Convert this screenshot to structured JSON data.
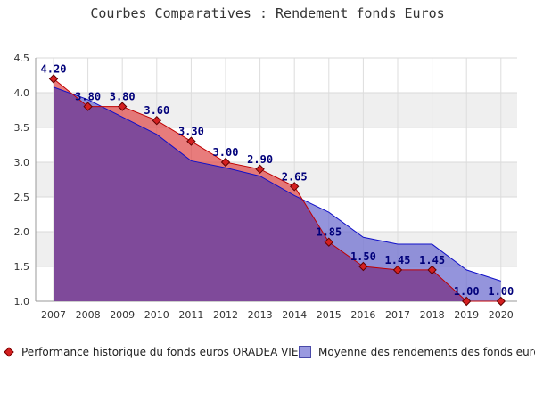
{
  "title": "Courbes Comparatives : Rendement fonds Euros",
  "chart_data": {
    "type": "area",
    "categories": [
      "2007",
      "2008",
      "2009",
      "2010",
      "2011",
      "2012",
      "2013",
      "2014",
      "2015",
      "2016",
      "2017",
      "2018",
      "2019",
      "2020"
    ],
    "series": [
      {
        "name": "Performance historique du fonds euros ORADEA VIE",
        "values": [
          4.2,
          3.8,
          3.8,
          3.6,
          3.3,
          3.0,
          2.9,
          2.65,
          1.85,
          1.5,
          1.45,
          1.45,
          1.0,
          1.0
        ],
        "labels": [
          "4.20",
          "3.80",
          "3.80",
          "3.60",
          "3.30",
          "3.00",
          "2.90",
          "2.65",
          "1.85",
          "1.50",
          "1.45",
          "1.45",
          "1.00",
          "1.00"
        ],
        "color": "#e05050",
        "line_color": "#c00000"
      },
      {
        "name": "Moyenne des rendements des fonds euros",
        "values": [
          4.08,
          3.9,
          3.65,
          3.4,
          3.02,
          2.92,
          2.8,
          2.52,
          2.28,
          1.92,
          1.82,
          1.82,
          1.45,
          1.29
        ],
        "color": "#7070d0",
        "line_color": "#1010c8"
      }
    ],
    "yticks": [
      "1.0",
      "1.5",
      "2.0",
      "2.5",
      "3.0",
      "3.5",
      "4.0",
      "4.5"
    ],
    "ylim": [
      1.0,
      4.5
    ],
    "grid": true,
    "legend_position": "bottom",
    "overlap_color": "#7f4a9a",
    "label_color": "#00007a"
  }
}
